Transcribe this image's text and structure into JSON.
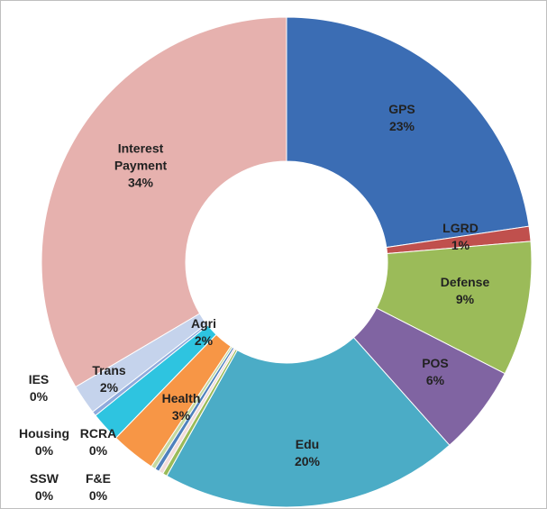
{
  "chart_data": {
    "type": "donut",
    "categories": [
      "GPS",
      "LGRD",
      "Defense",
      "POS",
      "Edu",
      "F&E",
      "SSW",
      "RCRA",
      "Housing",
      "Health",
      "Trans",
      "IES",
      "Agri",
      "Interest Payment"
    ],
    "values": [
      23,
      1,
      9,
      6,
      20,
      0.3,
      0.3,
      0.3,
      0.3,
      3,
      2,
      0.3,
      2,
      34
    ],
    "value_labels": [
      "23%",
      "1%",
      "9%",
      "6%",
      "20%",
      "0%",
      "0%",
      "0%",
      "0%",
      "3%",
      "2%",
      "0%",
      "2%",
      "34%"
    ],
    "colors": [
      "#3b6db4",
      "#c0504d",
      "#9bbb59",
      "#8064a2",
      "#4bacc6",
      "#9bbb59",
      "#f2dcdb",
      "#4f81bd",
      "#c6d9a0",
      "#f79646",
      "#2ec4e0",
      "#8faadc",
      "#c5d3ec",
      "#e6b1ae"
    ]
  }
}
